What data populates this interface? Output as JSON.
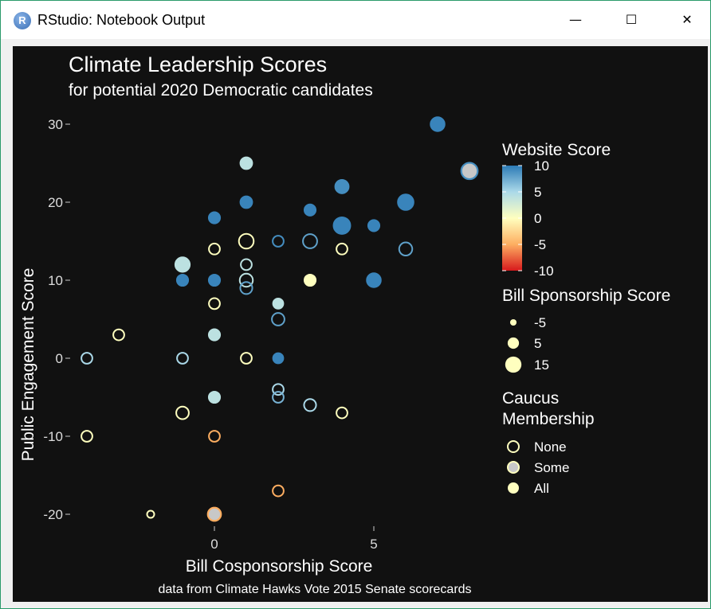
{
  "window": {
    "title": "RStudio: Notebook Output",
    "app_icon": "R",
    "controls": {
      "minimize": "—",
      "maximize": "☐",
      "close": "✕"
    }
  },
  "chart_data": {
    "type": "scatter",
    "title": "Climate Leadership Scores",
    "subtitle": "for potential 2020 Democratic candidates",
    "xlabel": "Bill Cosponsorship Score",
    "ylabel": "Public Engagement Score",
    "caption": "data from Climate Hawks Vote 2015 Senate scorecards",
    "xlim": [
      -4,
      8
    ],
    "ylim": [
      -22,
      31
    ],
    "x_ticks": [
      {
        "value": 0,
        "label": "0"
      },
      {
        "value": 5,
        "label": "5"
      }
    ],
    "y_ticks": [
      {
        "value": 30,
        "label": "30"
      },
      {
        "value": 20,
        "label": "20"
      },
      {
        "value": 10,
        "label": "10"
      },
      {
        "value": 0,
        "label": "0"
      },
      {
        "value": -10,
        "label": "-10"
      },
      {
        "value": -20,
        "label": "-20"
      }
    ],
    "grid": false,
    "background": "#111111",
    "legend_position": "right",
    "legends": {
      "color": {
        "title": "Website Score",
        "labels": [
          "10",
          "5",
          "0",
          "-5",
          "-10"
        ],
        "values": [
          10,
          5,
          0,
          -5,
          -10
        ],
        "colors": [
          "#2c7bb6",
          "#abd9e9",
          "#ffffbf",
          "#fdae61",
          "#d7191c"
        ]
      },
      "size": {
        "title": "Bill Sponsorship Score",
        "labels": [
          "-5",
          "5",
          "15"
        ],
        "values": [
          -5,
          5,
          15
        ]
      },
      "shape": {
        "title_lines": [
          "Caucus",
          "Membership"
        ],
        "labels": [
          "None",
          "Some",
          "All"
        ]
      }
    },
    "points": [
      {
        "x": 7,
        "y": 30,
        "website": 9.5,
        "sponsor": 9,
        "caucus": "All"
      },
      {
        "x": 8,
        "y": 24,
        "website": 9,
        "sponsor": 12,
        "caucus": "Some"
      },
      {
        "x": 1,
        "y": 25,
        "website": 4,
        "sponsor": 5,
        "caucus": "All"
      },
      {
        "x": 4,
        "y": 22,
        "website": 9,
        "sponsor": 8,
        "caucus": "All"
      },
      {
        "x": 6,
        "y": 20,
        "website": 9.5,
        "sponsor": 12,
        "caucus": "All"
      },
      {
        "x": 1,
        "y": 20,
        "website": 9.5,
        "sponsor": 5,
        "caucus": "All"
      },
      {
        "x": 3,
        "y": 19,
        "website": 9.5,
        "sponsor": 4,
        "caucus": "All"
      },
      {
        "x": 0,
        "y": 18,
        "website": 9.5,
        "sponsor": 4,
        "caucus": "All"
      },
      {
        "x": 4,
        "y": 17,
        "website": 9.5,
        "sponsor": 14,
        "caucus": "All"
      },
      {
        "x": 5,
        "y": 17,
        "website": 9.5,
        "sponsor": 4,
        "caucus": "All"
      },
      {
        "x": 1,
        "y": 15,
        "website": 0,
        "sponsor": 9,
        "caucus": "None"
      },
      {
        "x": 2,
        "y": 15,
        "website": 9,
        "sponsor": 2,
        "caucus": "None"
      },
      {
        "x": 3,
        "y": 15,
        "website": 8,
        "sponsor": 8,
        "caucus": "None"
      },
      {
        "x": 0,
        "y": 14,
        "website": 0,
        "sponsor": 2,
        "caucus": "None"
      },
      {
        "x": 4,
        "y": 14,
        "website": 0,
        "sponsor": 2,
        "caucus": "None"
      },
      {
        "x": 6,
        "y": 14,
        "website": 8,
        "sponsor": 6,
        "caucus": "None"
      },
      {
        "x": -1,
        "y": 12,
        "website": 4,
        "sponsor": 10,
        "caucus": "All"
      },
      {
        "x": 1,
        "y": 12,
        "website": 4,
        "sponsor": 2,
        "caucus": "None"
      },
      {
        "x": -1,
        "y": 10,
        "website": 9.5,
        "sponsor": 4,
        "caucus": "All"
      },
      {
        "x": 0,
        "y": 10,
        "website": 9.5,
        "sponsor": 4,
        "caucus": "All"
      },
      {
        "x": 1,
        "y": 10,
        "website": 4,
        "sponsor": 6,
        "caucus": "None"
      },
      {
        "x": 1,
        "y": 9,
        "website": 8,
        "sponsor": 4,
        "caucus": "None"
      },
      {
        "x": 3,
        "y": 10,
        "website": 0,
        "sponsor": 4,
        "caucus": "All"
      },
      {
        "x": 5,
        "y": 10,
        "website": 9.5,
        "sponsor": 9,
        "caucus": "All"
      },
      {
        "x": 0,
        "y": 7,
        "website": 0,
        "sponsor": 2,
        "caucus": "None"
      },
      {
        "x": 2,
        "y": 7,
        "website": 4,
        "sponsor": 2,
        "caucus": "All"
      },
      {
        "x": 2,
        "y": 5,
        "website": 8,
        "sponsor": 5,
        "caucus": "None"
      },
      {
        "x": -3,
        "y": 3,
        "website": 0,
        "sponsor": 2,
        "caucus": "None"
      },
      {
        "x": 0,
        "y": 3,
        "website": 4,
        "sponsor": 4,
        "caucus": "All"
      },
      {
        "x": -4,
        "y": 0,
        "website": 5,
        "sponsor": 2,
        "caucus": "None"
      },
      {
        "x": -1,
        "y": 0,
        "website": 5,
        "sponsor": 2,
        "caucus": "None"
      },
      {
        "x": 1,
        "y": 0,
        "website": 0,
        "sponsor": 2,
        "caucus": "None"
      },
      {
        "x": 2,
        "y": 0,
        "website": 9.5,
        "sponsor": 2,
        "caucus": "All"
      },
      {
        "x": 2,
        "y": -4,
        "website": 5,
        "sponsor": 2,
        "caucus": "None"
      },
      {
        "x": 2,
        "y": -5,
        "website": 7,
        "sponsor": 2,
        "caucus": "None"
      },
      {
        "x": 0,
        "y": -5,
        "website": 4,
        "sponsor": 4,
        "caucus": "All"
      },
      {
        "x": 3,
        "y": -6,
        "website": 5,
        "sponsor": 4,
        "caucus": "None"
      },
      {
        "x": -1,
        "y": -7,
        "website": 0,
        "sponsor": 5,
        "caucus": "None"
      },
      {
        "x": 4,
        "y": -7,
        "website": 0,
        "sponsor": 2,
        "caucus": "None"
      },
      {
        "x": -4,
        "y": -10,
        "website": 0,
        "sponsor": 2,
        "caucus": "None"
      },
      {
        "x": 0,
        "y": -10,
        "website": -5,
        "sponsor": 2,
        "caucus": "None"
      },
      {
        "x": 2,
        "y": -17,
        "website": -5,
        "sponsor": 2,
        "caucus": "None"
      },
      {
        "x": -2,
        "y": -20,
        "website": 0,
        "sponsor": -5,
        "caucus": "None"
      },
      {
        "x": 0,
        "y": -20,
        "website": -5,
        "sponsor": 6,
        "caucus": "Some"
      }
    ]
  }
}
